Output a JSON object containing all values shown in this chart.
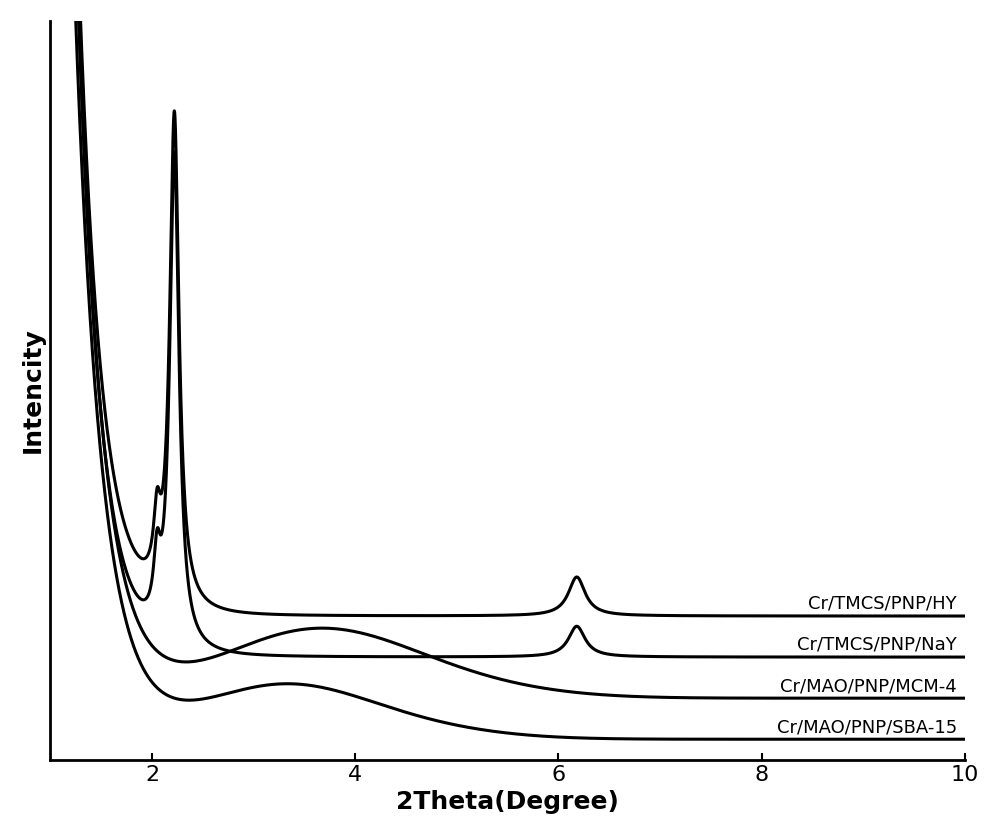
{
  "xlabel": "2Theta(Degree)",
  "ylabel": "Intencity",
  "xlim": [
    1.0,
    10.0
  ],
  "xticks": [
    2,
    4,
    6,
    8,
    10
  ],
  "background_color": "#ffffff",
  "line_color": "#000000",
  "line_width": 2.2,
  "label_fontsize": 18,
  "tick_fontsize": 16,
  "series_labels": [
    "Cr/TMCS/PNP/HY",
    "Cr/TMCS/PNP/NaY",
    "Cr/MAO/PNP/MCM-4",
    "Cr/MAO/PNP/SBA-15"
  ],
  "fig_width": 10.0,
  "fig_height": 8.35
}
